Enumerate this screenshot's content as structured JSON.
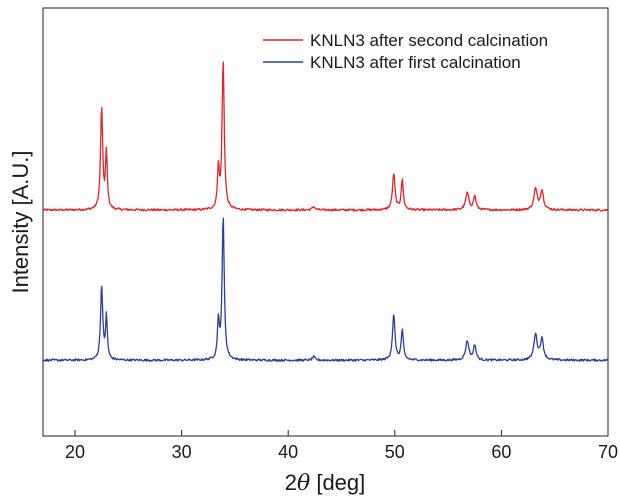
{
  "chart_data": {
    "type": "line",
    "xlabel_prefix": "2",
    "xlabel_symbol": "θ",
    "xlabel_suffix": " [deg]",
    "ylabel": "Intensity [A.U.]",
    "xlim": [
      17,
      70
    ],
    "ylim": [
      0,
      1
    ],
    "xticks": [
      20,
      30,
      40,
      50,
      60,
      70
    ],
    "yticks_visible": false,
    "grid": false,
    "legend_position": "top-right",
    "series": [
      {
        "name": "KNLN3 after second calcination",
        "color": "#e0242b",
        "baseline": 0.528,
        "noise": 0.0025,
        "peaks": [
          {
            "x": 22.5,
            "height": 0.24,
            "width": 0.12
          },
          {
            "x": 22.95,
            "height": 0.13,
            "width": 0.1
          },
          {
            "x": 33.45,
            "height": 0.095,
            "width": 0.1
          },
          {
            "x": 33.9,
            "height": 0.35,
            "width": 0.12
          },
          {
            "x": 42.4,
            "height": 0.008,
            "width": 0.15
          },
          {
            "x": 49.9,
            "height": 0.085,
            "width": 0.14
          },
          {
            "x": 50.7,
            "height": 0.07,
            "width": 0.12
          },
          {
            "x": 56.8,
            "height": 0.04,
            "width": 0.18
          },
          {
            "x": 57.5,
            "height": 0.032,
            "width": 0.14
          },
          {
            "x": 63.2,
            "height": 0.048,
            "width": 0.18
          },
          {
            "x": 63.8,
            "height": 0.044,
            "width": 0.18
          }
        ]
      },
      {
        "name": "KNLN3 after first calcination",
        "color": "#2c3e99",
        "baseline": 0.177,
        "noise": 0.0025,
        "peaks": [
          {
            "x": 22.5,
            "height": 0.175,
            "width": 0.12
          },
          {
            "x": 22.95,
            "height": 0.1,
            "width": 0.1
          },
          {
            "x": 33.45,
            "height": 0.09,
            "width": 0.1
          },
          {
            "x": 33.9,
            "height": 0.335,
            "width": 0.12
          },
          {
            "x": 42.4,
            "height": 0.008,
            "width": 0.15
          },
          {
            "x": 49.9,
            "height": 0.105,
            "width": 0.14
          },
          {
            "x": 50.7,
            "height": 0.07,
            "width": 0.12
          },
          {
            "x": 56.8,
            "height": 0.045,
            "width": 0.18
          },
          {
            "x": 57.5,
            "height": 0.035,
            "width": 0.14
          },
          {
            "x": 63.2,
            "height": 0.06,
            "width": 0.18
          },
          {
            "x": 63.8,
            "height": 0.048,
            "width": 0.18
          }
        ]
      }
    ]
  }
}
